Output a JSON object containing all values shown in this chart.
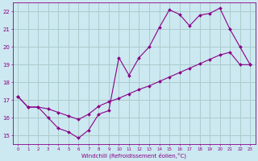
{
  "xlabel": "Windchill (Refroidissement éolien,°C)",
  "xlim": [
    -0.5,
    23.5
  ],
  "ylim": [
    14.5,
    22.5
  ],
  "xticks": [
    0,
    1,
    2,
    3,
    4,
    5,
    6,
    7,
    8,
    9,
    10,
    11,
    12,
    13,
    14,
    15,
    16,
    17,
    18,
    19,
    20,
    21,
    22,
    23
  ],
  "yticks": [
    15,
    16,
    17,
    18,
    19,
    20,
    21,
    22
  ],
  "bg_color": "#cce8f0",
  "grid_color": "#aacccc",
  "line_color": "#880088",
  "line1_x": [
    0,
    1,
    2,
    3,
    4,
    5,
    6,
    7,
    8,
    9,
    10,
    11,
    12,
    13,
    14,
    15,
    16,
    17,
    18,
    19,
    20,
    21,
    22,
    23
  ],
  "line1_y": [
    17.2,
    16.6,
    16.6,
    16.0,
    15.4,
    15.2,
    14.85,
    15.3,
    16.2,
    16.4,
    19.4,
    18.4,
    19.4,
    20.0,
    21.1,
    22.1,
    21.85,
    21.2,
    21.8,
    21.9,
    22.2,
    21.0,
    20.0,
    19.0
  ],
  "line2_x": [
    0,
    1,
    2,
    3,
    4,
    5,
    6,
    7,
    8,
    9,
    10,
    11,
    12,
    13,
    14,
    15,
    16,
    17,
    18,
    19,
    20,
    21,
    22,
    23
  ],
  "line2_y": [
    17.2,
    16.6,
    16.6,
    16.5,
    16.3,
    16.1,
    15.9,
    16.2,
    16.65,
    16.9,
    17.1,
    17.35,
    17.6,
    17.8,
    18.05,
    18.3,
    18.55,
    18.8,
    19.05,
    19.3,
    19.55,
    19.7,
    19.0,
    19.0
  ]
}
